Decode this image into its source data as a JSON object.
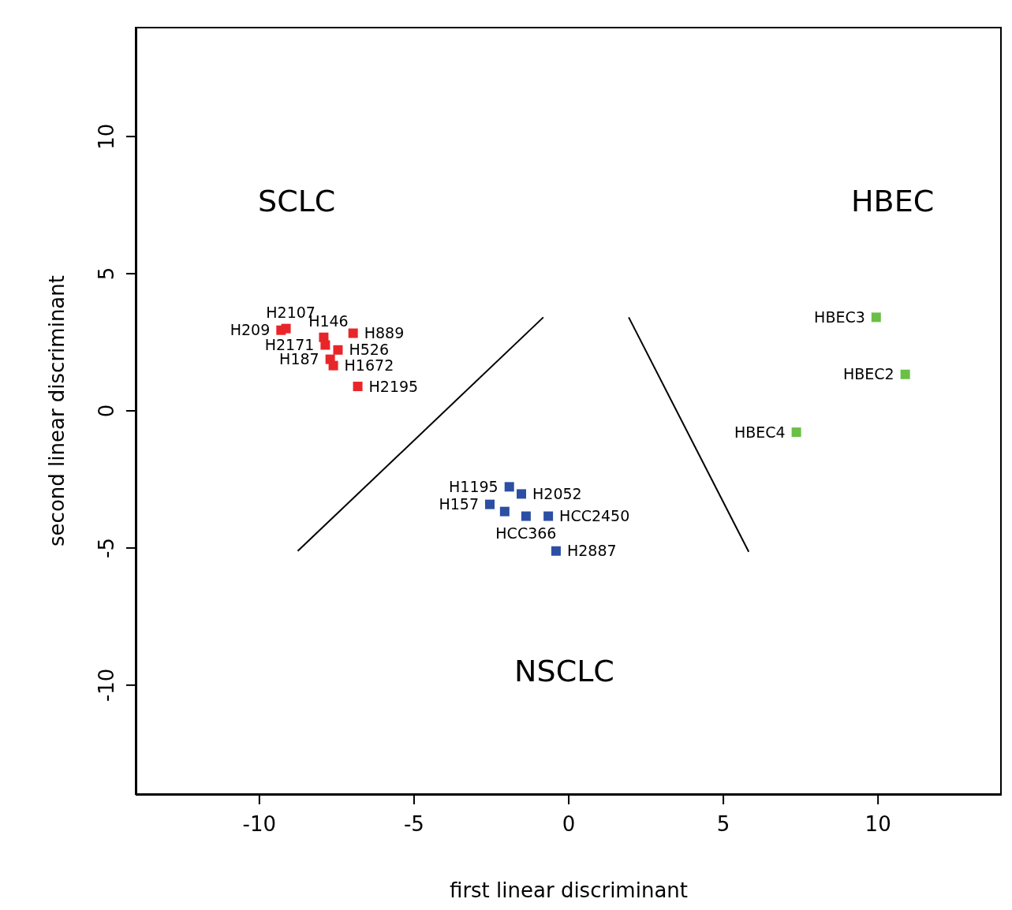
{
  "chart_data": {
    "type": "scatter",
    "xlabel": "first linear discriminant",
    "ylabel": "second linear discriminant",
    "xlim": [
      -14,
      14
    ],
    "ylim": [
      -14,
      14
    ],
    "xticks": [
      -10,
      -5,
      0,
      5,
      10
    ],
    "yticks": [
      -10,
      -5,
      0,
      5,
      10
    ],
    "grid": false,
    "legend": false,
    "marker": "square",
    "series": [
      {
        "color": "#e8262a",
        "x": [
          -9.3,
          -9.14,
          -7.92,
          -6.97,
          -7.87,
          -7.46,
          -7.71,
          -7.61,
          -6.82
        ],
        "values": [
          2.94,
          3.0,
          2.68,
          2.83,
          2.4,
          2.22,
          1.88,
          1.65,
          0.89
        ],
        "value_labels": [
          "H209",
          "H2107",
          "H146",
          "H889",
          "H2171",
          "H526",
          "H187",
          "H1672",
          "H2195"
        ]
      },
      {
        "color": "#2c4fa3",
        "x": [
          -1.92,
          -1.53,
          -2.55,
          -2.07,
          -1.38,
          -0.66,
          -0.41
        ],
        "values": [
          -2.77,
          -3.03,
          -3.41,
          -3.67,
          -3.84,
          -3.84,
          -5.11
        ],
        "value_labels": [
          "H1195",
          "H2052",
          "H157",
          null,
          "HCC366",
          "HCC2450",
          "H2887"
        ]
      },
      {
        "color": "#6abf45",
        "x": [
          9.94,
          10.88,
          7.36
        ],
        "values": [
          3.41,
          1.33,
          -0.78
        ],
        "value_labels": [
          "HBEC3",
          "HBEC2",
          "HBEC4"
        ]
      },
      {
        "type": "line",
        "color": "#000000",
        "marker": "none",
        "line_style": "solid",
        "x": [
          -8.76,
          -0.82
        ],
        "values": [
          -5.11,
          3.41
        ]
      },
      {
        "type": "line",
        "color": "#000000",
        "marker": "none",
        "line_style": "solid",
        "x": [
          1.94,
          5.82
        ],
        "values": [
          3.41,
          -5.14
        ]
      }
    ],
    "annotations": [
      "SCLC",
      "HBEC",
      "NSCLC"
    ]
  }
}
